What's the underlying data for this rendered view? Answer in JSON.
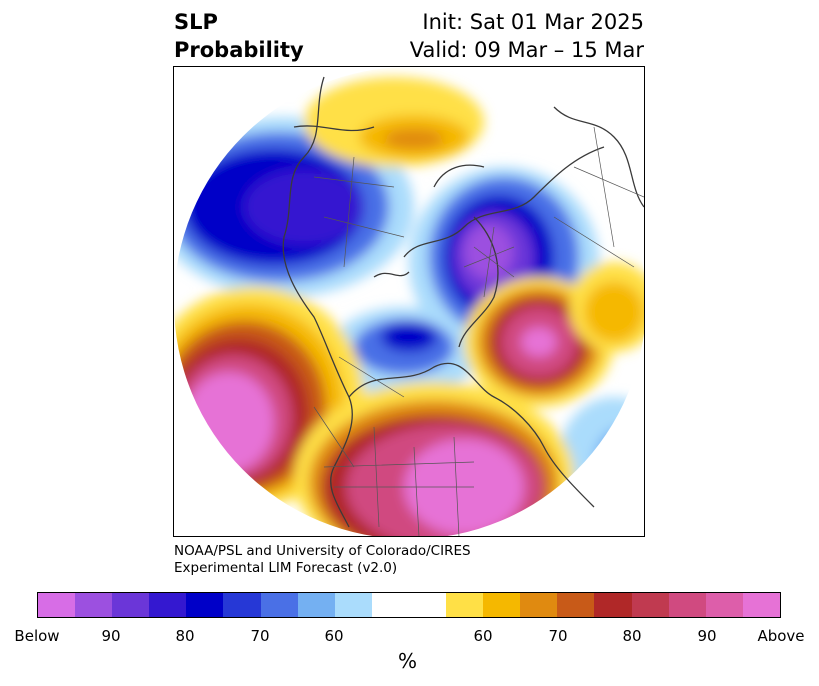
{
  "header": {
    "title_line1": "SLP",
    "title_line2": "Probability",
    "init": "Init: Sat 01 Mar 2025",
    "valid": "Valid: 09 Mar – 15 Mar"
  },
  "credit": {
    "line1": "NOAA/PSL and University of Colorado/CIRES",
    "line2": "Experimental LIM Forecast (v2.0)"
  },
  "colorbar": {
    "colors": [
      "#d76de6",
      "#9c50e0",
      "#6b36d8",
      "#3418d0",
      "#0000c8",
      "#2638d6",
      "#4a70e6",
      "#74b0f2",
      "#aadcfc",
      "#ffffff",
      "#ffffff",
      "#ffe046",
      "#f5b800",
      "#e08a10",
      "#c85a18",
      "#b02828",
      "#c03a50",
      "#d04a80",
      "#dd5eaa",
      "#e672d6"
    ],
    "ticks": [
      "Below",
      "90",
      "80",
      "70",
      "60",
      "60",
      "70",
      "80",
      "90",
      "Above"
    ],
    "unit": "%"
  }
}
